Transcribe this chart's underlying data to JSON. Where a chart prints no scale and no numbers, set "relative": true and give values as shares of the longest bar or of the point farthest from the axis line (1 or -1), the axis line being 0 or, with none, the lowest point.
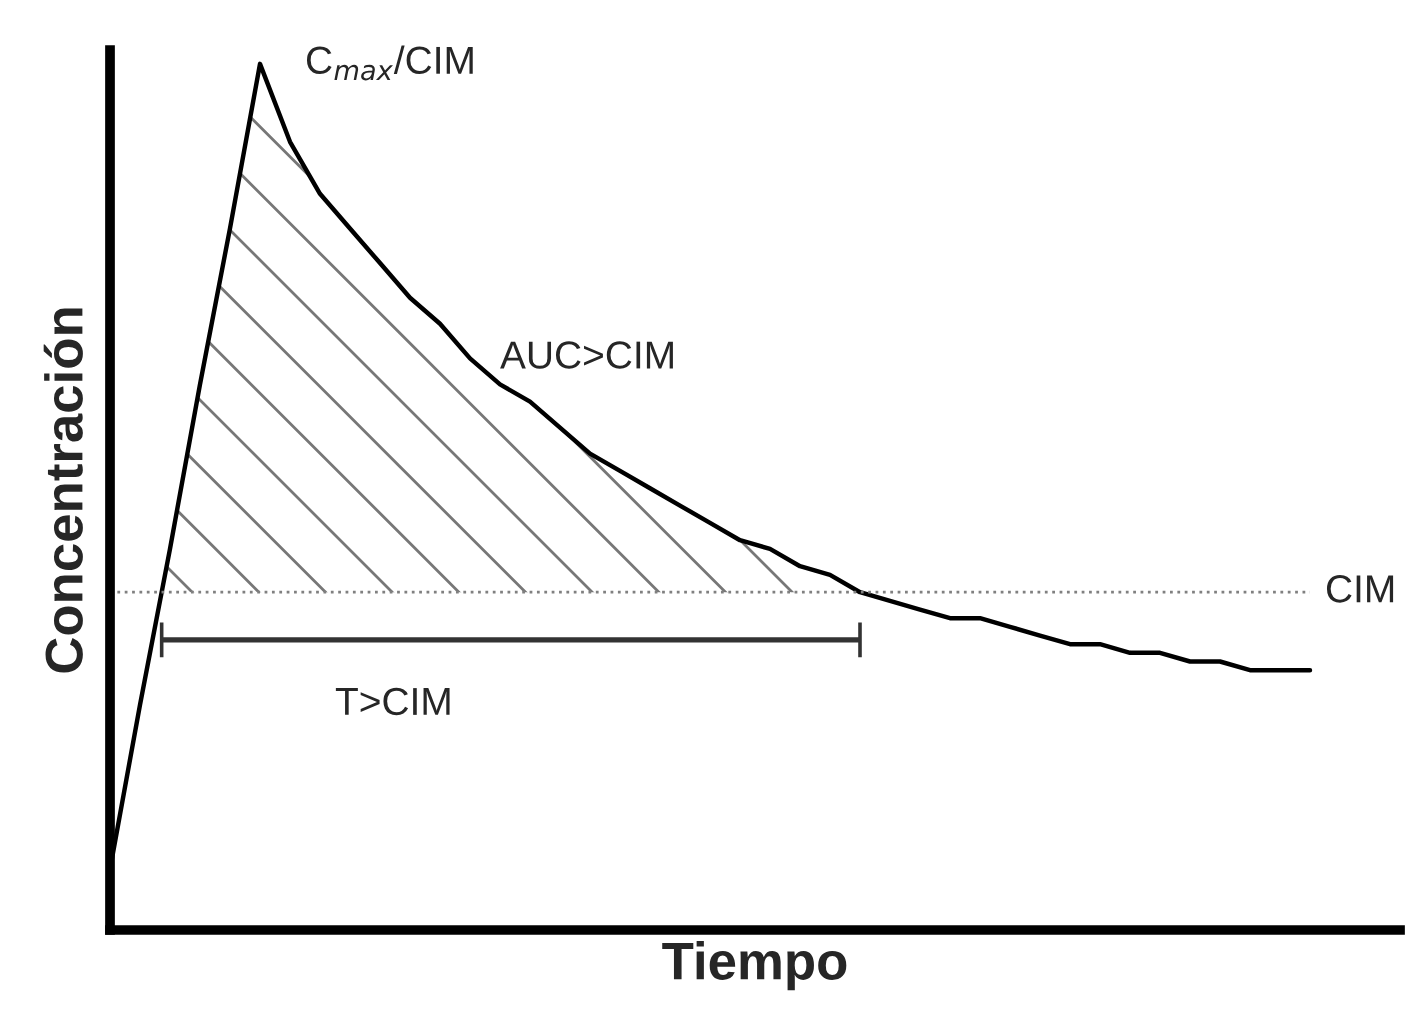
{
  "chart_data": {
    "type": "line",
    "relative": true,
    "xlabel": "Tiempo",
    "ylabel": "Concentración",
    "categories": [
      null,
      null,
      null,
      null,
      null,
      null,
      null,
      null,
      null,
      null,
      null,
      null,
      null,
      null,
      null,
      null,
      null,
      null,
      null,
      null,
      null,
      null,
      null,
      null,
      null,
      null,
      null,
      null,
      null,
      null,
      null,
      null,
      null,
      null,
      null,
      null,
      null,
      null,
      null,
      null,
      null
    ],
    "series": [
      {
        "color": "#000000",
        "values": [
          0.07,
          0.26,
          0.44,
          0.63,
          0.81,
          1,
          0.91,
          0.85,
          0.81,
          0.77,
          0.73,
          0.7,
          0.66,
          0.63,
          0.61,
          0.58,
          0.55,
          0.53,
          0.51,
          0.49,
          0.47,
          0.45,
          0.44,
          0.42,
          0.41,
          0.39,
          0.38,
          0.37,
          0.36,
          0.36,
          0.35,
          0.34,
          0.33,
          0.33,
          0.32,
          0.32,
          0.31,
          0.31,
          0.3,
          0.3,
          0.3
        ]
      }
    ],
    "ref_lines": [
      {
        "axis": "y",
        "value": 0.39,
        "label": "CIM",
        "color": "#808080",
        "line_style": "dotted"
      }
    ],
    "annotations": [
      "C$_{max}$/CIM",
      "AUC>CIM",
      "T>CIM"
    ],
    "marker": "none",
    "line_style": "solid",
    "legend": false
  }
}
